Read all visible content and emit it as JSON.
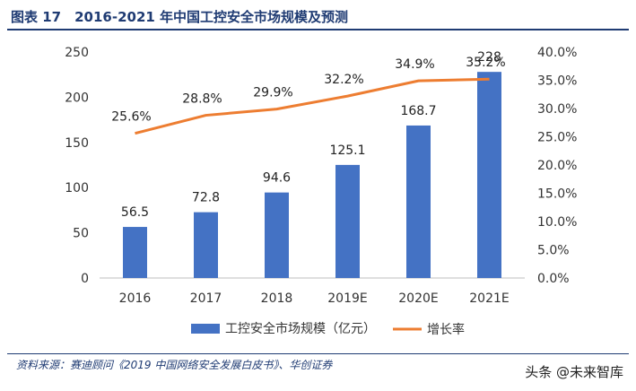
{
  "title": "图表 17　2016-2021 年中国工控安全市场规模及预测",
  "source": "资料来源：赛迪顾问《2019 中国网络安全发展白皮书》、华创证券",
  "watermark": "头条 @未来智库",
  "chart_data": {
    "type": "bar+line",
    "categories": [
      "2016",
      "2017",
      "2018",
      "2019E",
      "2020E",
      "2021E"
    ],
    "series": [
      {
        "name": "工控安全市场规模（亿元）",
        "type": "bar",
        "axis": "left",
        "values": [
          56.5,
          72.8,
          94.6,
          125.1,
          168.7,
          228
        ],
        "labels": [
          "56.5",
          "72.8",
          "94.6",
          "125.1",
          "168.7",
          "228"
        ],
        "color": "#4472c4"
      },
      {
        "name": "增长率",
        "type": "line",
        "axis": "right",
        "values": [
          25.6,
          28.8,
          29.9,
          32.2,
          34.9,
          35.2
        ],
        "labels": [
          "25.6%",
          "28.8%",
          "29.9%",
          "32.2%",
          "34.9%",
          "35.2%"
        ],
        "color": "#ed7d31"
      }
    ],
    "y_left": {
      "ylim": [
        0,
        250
      ],
      "ticks": [
        "0",
        "50",
        "100",
        "150",
        "200",
        "250"
      ]
    },
    "y_right": {
      "ylim": [
        0,
        40
      ],
      "ticks": [
        "0.0%",
        "5.0%",
        "10.0%",
        "15.0%",
        "20.0%",
        "25.0%",
        "30.0%",
        "35.0%",
        "40.0%"
      ]
    },
    "legend": {
      "placement": "bottom",
      "items": [
        "工控安全市场规模（亿元）",
        "增长率"
      ]
    },
    "grid": false
  }
}
